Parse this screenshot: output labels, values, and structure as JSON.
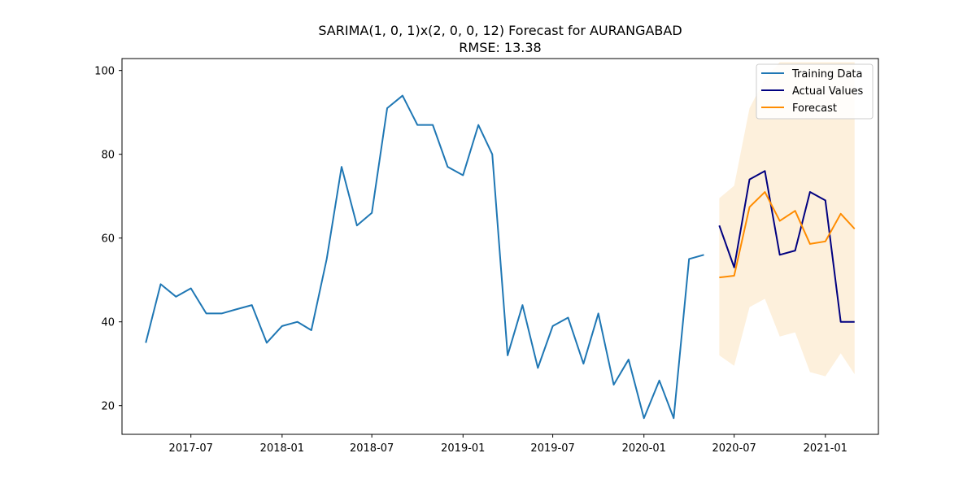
{
  "chart_data": {
    "type": "line",
    "title": "SARIMA(1, 0, 1)x(2, 0, 0, 12) Forecast for AURANGABAD",
    "subtitle": "RMSE: 13.38",
    "xlabel": "",
    "ylabel": "",
    "x_ticks": [
      "2017-07",
      "2018-01",
      "2018-07",
      "2019-01",
      "2019-07",
      "2020-01",
      "2020-07",
      "2021-01"
    ],
    "y_ticks": [
      20,
      40,
      60,
      80,
      100
    ],
    "xlim": [
      "2017-02-12",
      "2021-04-18"
    ],
    "ylim": [
      13.15,
      102.85
    ],
    "grid": false,
    "legend": "top-right",
    "colors": {
      "training": "#1f77b4",
      "actual": "#000080",
      "forecast": "#ff8c00",
      "band": "#fdf0dc"
    },
    "series": [
      {
        "name": "Training Data",
        "color": "#1f77b4",
        "x": [
          "2017-04",
          "2017-05",
          "2017-06",
          "2017-07",
          "2017-08",
          "2017-09",
          "2017-10",
          "2017-11",
          "2017-12",
          "2018-01",
          "2018-02",
          "2018-03",
          "2018-04",
          "2018-05",
          "2018-06",
          "2018-07",
          "2018-08",
          "2018-09",
          "2018-10",
          "2018-11",
          "2018-12",
          "2019-01",
          "2019-02",
          "2019-03",
          "2019-04",
          "2019-05",
          "2019-06",
          "2019-07",
          "2019-08",
          "2019-09",
          "2019-10",
          "2019-11",
          "2019-12",
          "2020-01",
          "2020-02",
          "2020-03",
          "2020-04",
          "2020-05"
        ],
        "values": [
          35,
          49,
          46,
          48,
          42,
          42,
          43,
          44,
          35,
          39,
          40,
          38,
          55,
          77,
          63,
          66,
          91,
          94,
          87,
          87,
          77,
          75,
          87,
          80,
          32,
          44,
          29,
          39,
          41,
          30,
          42,
          25,
          31,
          17,
          26,
          17,
          55,
          56
        ]
      },
      {
        "name": "Actual Values",
        "color": "#000080",
        "x": [
          "2020-06",
          "2020-07",
          "2020-08",
          "2020-09",
          "2020-10",
          "2020-11",
          "2020-12",
          "2021-01",
          "2021-02",
          "2021-03"
        ],
        "values": [
          63,
          53,
          74,
          76,
          56,
          57,
          71,
          69,
          40,
          40
        ]
      },
      {
        "name": "Forecast",
        "color": "#ff8c00",
        "x": [
          "2020-06",
          "2020-07",
          "2020-08",
          "2020-09",
          "2020-10",
          "2020-11",
          "2020-12",
          "2021-01",
          "2021-02",
          "2021-03"
        ],
        "values": [
          50.6,
          51,
          67.4,
          71,
          64.1,
          66.5,
          58.6,
          59.2,
          65.8,
          62.2
        ],
        "lower": [
          32,
          29.5,
          43.5,
          45.5,
          36.5,
          37.5,
          28,
          27,
          32.5,
          27.5
        ],
        "upper": [
          69.5,
          72.5,
          91,
          98,
          102,
          102,
          102,
          102,
          102,
          102
        ]
      }
    ]
  }
}
